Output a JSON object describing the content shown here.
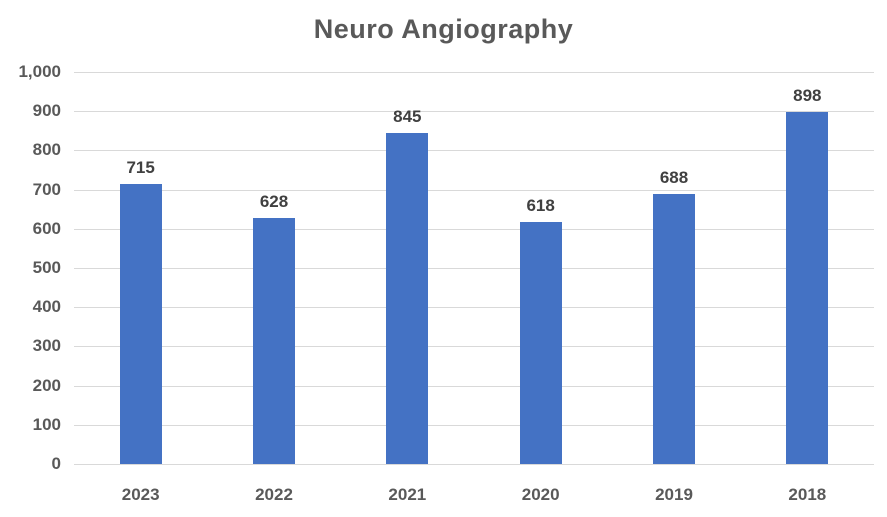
{
  "chart_data": {
    "type": "bar",
    "title": "Neuro Angiography",
    "categories": [
      "2023",
      "2022",
      "2021",
      "2020",
      "2019",
      "2018"
    ],
    "values": [
      715,
      628,
      845,
      618,
      688,
      898
    ],
    "data_labels": [
      "715",
      "628",
      "845",
      "618",
      "688",
      "898"
    ],
    "xlabel": "",
    "ylabel": "",
    "ylim": [
      0,
      1000
    ],
    "ytick_step": 100,
    "ytick_labels": [
      "0",
      "100",
      "200",
      "300",
      "400",
      "500",
      "600",
      "700",
      "800",
      "900",
      "1,000"
    ],
    "grid": true,
    "legend": "none",
    "bar_color": "#4472C4",
    "gridline_color": "#D9D9D9",
    "axis_line_color": "#D9D9D9",
    "title_color": "#595959",
    "axis_text_color": "#595959",
    "data_label_color": "#404040",
    "background_color": "#FFFFFF"
  }
}
